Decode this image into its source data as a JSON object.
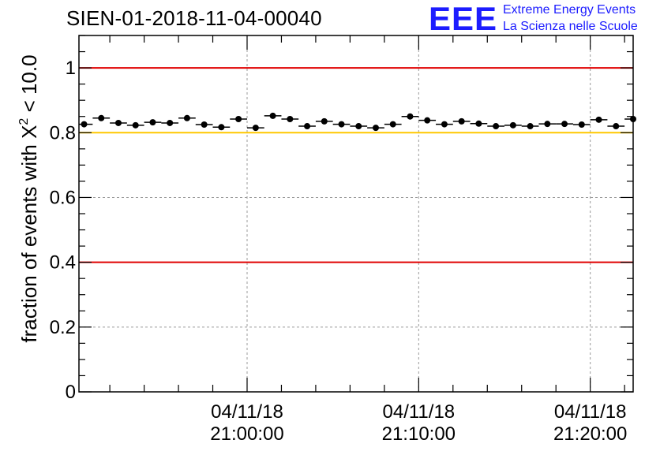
{
  "header": {
    "run_title": "SIEN-01-2018-11-04-00040"
  },
  "logo": {
    "mark": "EEE",
    "line1": "Extreme Energy Events",
    "line2": "La Scienza nelle Scuole",
    "color": "#1c1cff"
  },
  "chart_data": {
    "type": "scatter",
    "title": "SIEN-01-2018-11-04-00040",
    "ylabel": "fraction of events with χ² < 10.0",
    "ylabel_main": "fraction of events with X",
    "ylabel_sup": "2",
    "ylabel_tail": " < 10.0",
    "ylim": [
      0,
      1.1
    ],
    "y_ticks": [
      0,
      0.2,
      0.4,
      0.6,
      0.8,
      1
    ],
    "y_tick_labels": [
      "0",
      "0.2",
      "0.4",
      "0.6",
      "0.8",
      "1"
    ],
    "x_range_minutes": [
      -9.8,
      22.5
    ],
    "x_ticks": [
      {
        "minute": 0,
        "date": "04/11/18",
        "time": "21:00:00"
      },
      {
        "minute": 10,
        "date": "04/11/18",
        "time": "21:10:00"
      },
      {
        "minute": 20,
        "date": "04/11/18",
        "time": "21:20:00"
      }
    ],
    "grid": true,
    "reference_lines": [
      {
        "y": 1.0,
        "color": "#e00000"
      },
      {
        "y": 0.8,
        "color": "#ffc800"
      },
      {
        "y": 0.4,
        "color": "#e00000"
      }
    ],
    "bin_width_minutes": 1,
    "x_minutes": [
      -9.5,
      -8.5,
      -7.5,
      -6.5,
      -5.5,
      -4.5,
      -3.5,
      -2.5,
      -1.5,
      -0.5,
      0.5,
      1.5,
      2.5,
      3.5,
      4.5,
      5.5,
      6.5,
      7.5,
      8.5,
      9.5,
      10.5,
      11.5,
      12.5,
      13.5,
      14.5,
      15.5,
      16.5,
      17.5,
      18.5,
      19.5,
      20.5,
      21.5,
      22.5
    ],
    "values": [
      0.826,
      0.845,
      0.83,
      0.823,
      0.832,
      0.83,
      0.845,
      0.825,
      0.817,
      0.842,
      0.815,
      0.852,
      0.842,
      0.82,
      0.835,
      0.826,
      0.82,
      0.815,
      0.826,
      0.85,
      0.838,
      0.826,
      0.835,
      0.828,
      0.82,
      0.823,
      0.82,
      0.827,
      0.827,
      0.825,
      0.84,
      0.82,
      0.842
    ]
  }
}
